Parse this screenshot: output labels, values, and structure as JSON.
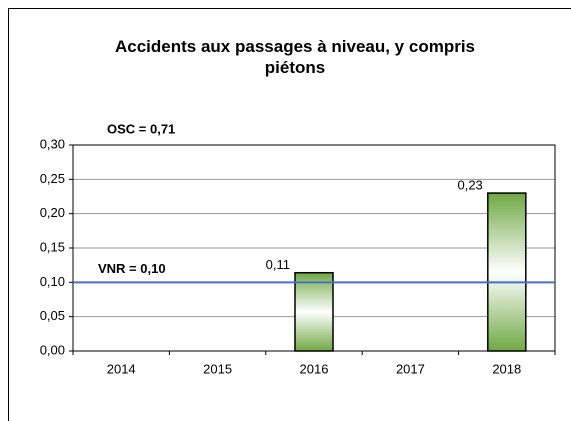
{
  "chart_data": {
    "type": "bar",
    "title": "Accidents aux passages à niveau, y compris piétons",
    "categories": [
      "2014",
      "2015",
      "2016",
      "2017",
      "2018"
    ],
    "values": [
      null,
      null,
      0.114,
      null,
      0.23
    ],
    "value_labels": [
      null,
      null,
      "0,11",
      null,
      "0,23"
    ],
    "color": "#70a845",
    "ylim": [
      0,
      0.3
    ],
    "yticks": [
      {
        "value": 0,
        "label": "0,00"
      },
      {
        "value": 0.05,
        "label": "0,05"
      },
      {
        "value": 0.1,
        "label": "0,10"
      },
      {
        "value": 0.15,
        "label": "0,15"
      },
      {
        "value": 0.2,
        "label": "0,20"
      },
      {
        "value": 0.25,
        "label": "0,25"
      },
      {
        "value": 0.3,
        "label": "0,30"
      }
    ],
    "grid": true,
    "reference_lines": [
      {
        "label": "VNR = 0,10",
        "value": 0.1,
        "color": "#4472c4"
      }
    ],
    "annotations": [
      {
        "text": "OSC = 0,71",
        "color": "#ff0000"
      }
    ]
  }
}
